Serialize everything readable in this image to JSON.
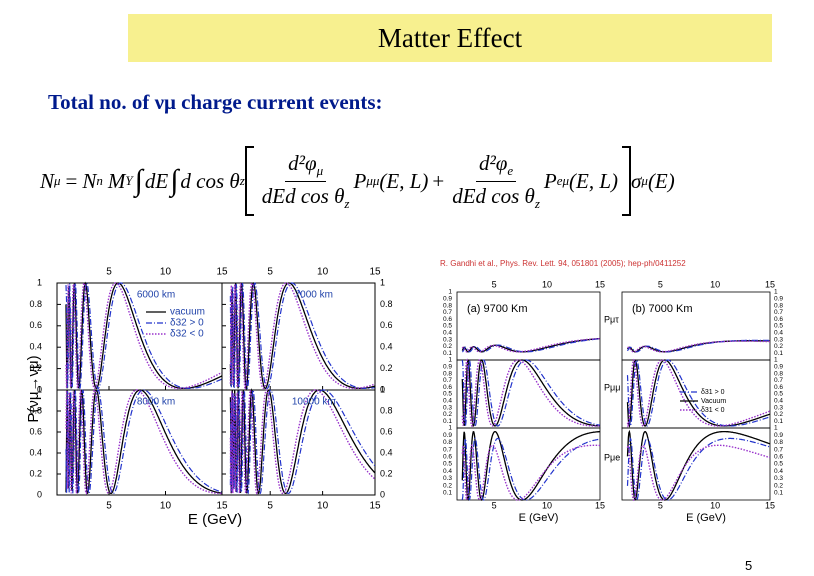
{
  "header": {
    "title": "Matter Effect"
  },
  "body": {
    "intro": "Total no. of νμ charge current events:"
  },
  "equation": {
    "lhs": {
      "sym": "N",
      "sub": "μ"
    },
    "equals": "=",
    "factors": [
      {
        "sym": "N",
        "sub": "n"
      },
      {
        "sym": "M",
        "sub": "Y"
      }
    ],
    "integral": "∫",
    "dE": "dE",
    "dcos": "d cos θ",
    "dcos_sub": "z",
    "terms": [
      {
        "num": "d²φ",
        "num_sub": "μ",
        "den": "dEd cos θ",
        "den_sub": "z",
        "P": "P",
        "P_sub": "μμ",
        "args": "(E, L)"
      },
      {
        "num": "d²φ",
        "num_sub": "e",
        "den": "dEd cos θ",
        "den_sub": "z",
        "P": "P",
        "P_sub": "eμ",
        "args": "(E, L)"
      }
    ],
    "plus": "+",
    "sigma": {
      "sym": "σ",
      "sub": "μ",
      "args": "(E)"
    }
  },
  "left_figure": {
    "x_ticks": [
      5,
      10,
      15
    ],
    "y_ticks": [
      0,
      0.2,
      0.4,
      0.6,
      0.8,
      1
    ],
    "panels": [
      {
        "label": "6000 km"
      },
      {
        "label": "7000 km"
      },
      {
        "label": "8000 km"
      },
      {
        "label": "10000 km"
      }
    ],
    "legend": [
      "vacuum",
      "δ32 > 0",
      "δ32 < 0"
    ],
    "y_label": "P(νμ→νμ)",
    "x_label": "E (GeV)"
  },
  "right_figure": {
    "caption": "R. Gandhi et al., Phys. Rev. Lett. 94, 051801 (2005); hep-ph/0411252",
    "x_ticks": [
      5,
      10,
      15
    ],
    "y_ticks": [
      0.1,
      0.2,
      0.3,
      0.4,
      0.5,
      0.6,
      0.7,
      0.8,
      0.9,
      1
    ],
    "panels": [
      {
        "label": "(a) 9700 Km"
      },
      {
        "label": "(b) 7000 Km"
      }
    ],
    "row_labels": [
      "Pμτ",
      "Pμμ",
      "Pμe"
    ],
    "legend": [
      "δ31 > 0",
      "Vacuum",
      "δ31 < 0"
    ],
    "x_label": "E (GeV)"
  },
  "footer": {
    "page": "5"
  }
}
